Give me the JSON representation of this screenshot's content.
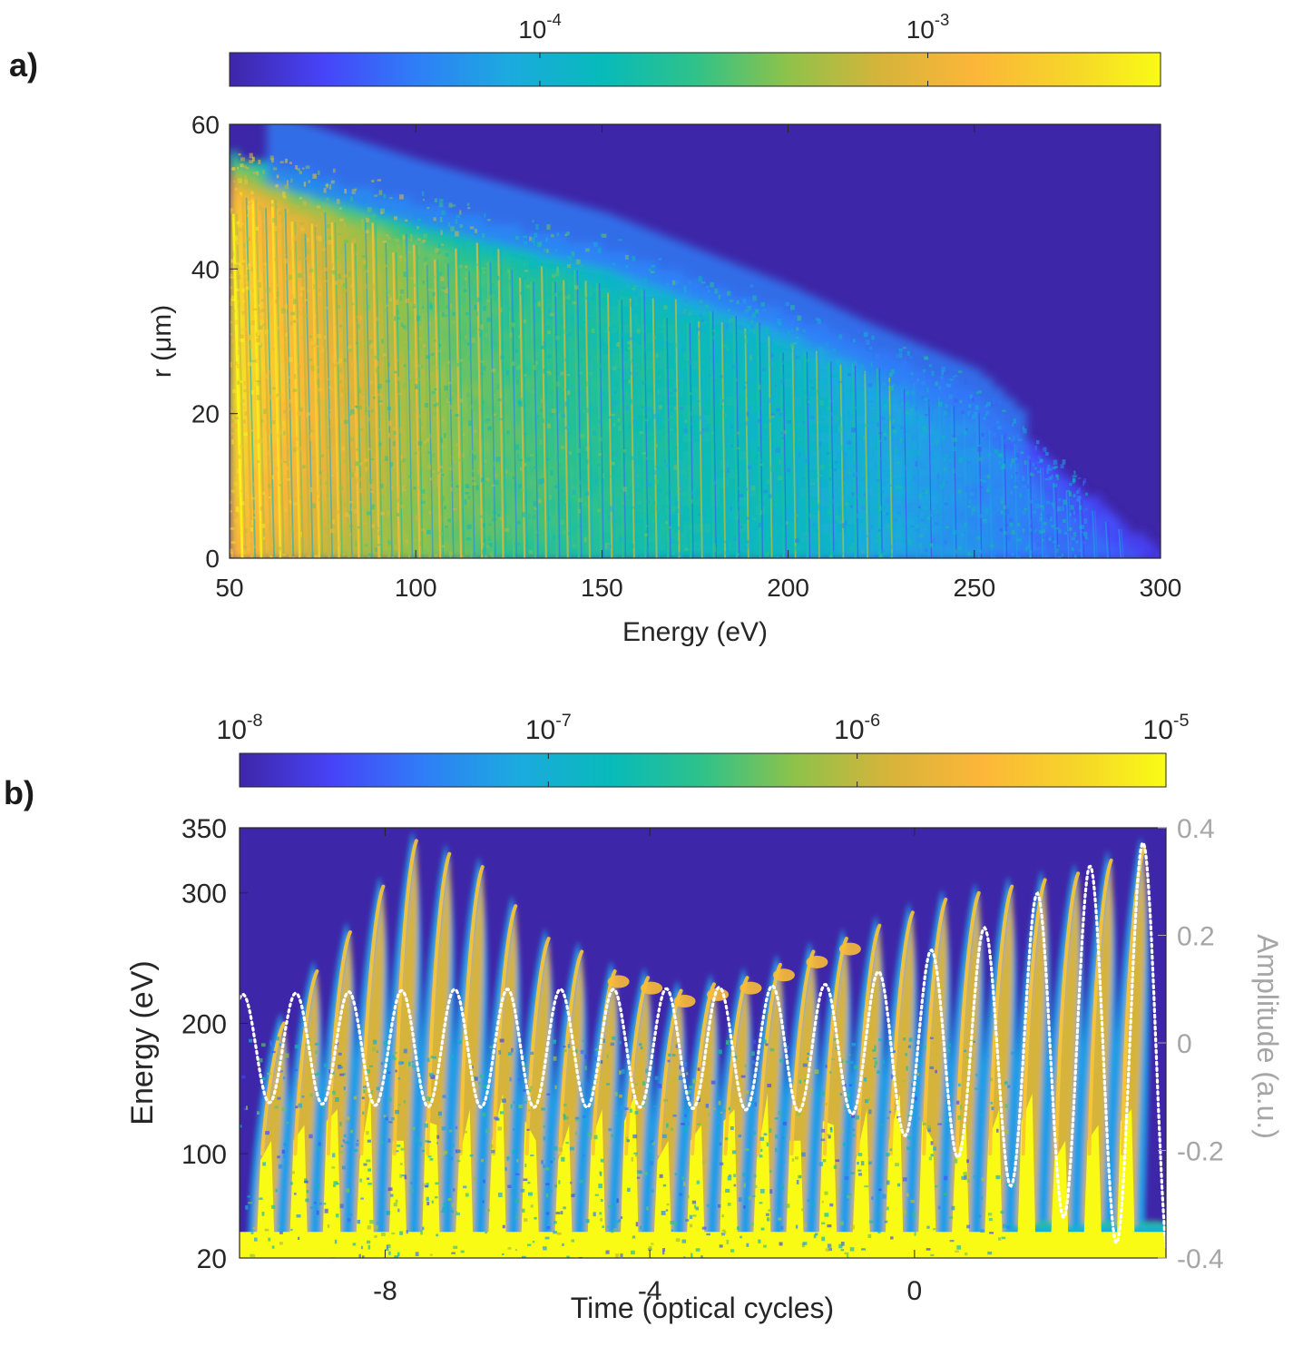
{
  "colors": {
    "parula": [
      "#3e26a8",
      "#4743f8",
      "#2f7ef7",
      "#1caadf",
      "#07baba",
      "#2fc28a",
      "#8fc24a",
      "#d6b43a",
      "#fcb639",
      "#f6d42a",
      "#f9fb15"
    ],
    "background": "#3e26a8",
    "amplitude_line": "#ffffff",
    "right_axis": "#a6a6a6"
  },
  "chart_data": [
    {
      "panel_label": "a)",
      "type": "heatmap",
      "xlabel": "Energy (eV)",
      "ylabel": "r (μm)",
      "xlim": [
        50,
        300
      ],
      "ylim": [
        0,
        60
      ],
      "xticks": [
        50,
        100,
        150,
        200,
        250,
        300
      ],
      "xtick_labels": [
        "50",
        "100",
        "150",
        "200",
        "250",
        "300"
      ],
      "yticks": [
        0,
        20,
        40,
        60
      ],
      "ytick_labels": [
        "0",
        "20",
        "40",
        "60"
      ],
      "colorbar": {
        "scale": "log",
        "range_log10": [
          -4.8,
          -2.4
        ],
        "ticks_log10": [
          -4,
          -3
        ],
        "tick_labels": [
          {
            "base": "10",
            "exp": "-4"
          },
          {
            "base": "10",
            "exp": "-3"
          }
        ]
      },
      "signal_edge_r_vs_energy": [
        [
          50,
          55
        ],
        [
          100,
          48
        ],
        [
          150,
          42
        ],
        [
          200,
          33
        ],
        [
          250,
          22
        ],
        [
          275,
          10
        ],
        [
          300,
          0
        ]
      ]
    },
    {
      "panel_label": "b)",
      "type": "heatmap",
      "xlabel": "Time (optical cycles)",
      "ylabel": "Energy (eV)",
      "y2label": "Amplitude (a.u.)",
      "xlim": [
        -10.2,
        3.8
      ],
      "ylim": [
        20,
        350
      ],
      "y2lim": [
        -0.4,
        0.4
      ],
      "xticks": [
        -8,
        -4,
        0
      ],
      "xtick_labels": [
        "-8",
        "-4",
        "0"
      ],
      "yticks": [
        20,
        100,
        200,
        300,
        350
      ],
      "ytick_labels": [
        "20",
        "100",
        "200",
        "300",
        "350"
      ],
      "y2ticks": [
        -0.4,
        -0.2,
        0,
        0.2,
        0.4
      ],
      "y2tick_labels": [
        "-0.4",
        "-0.2",
        "0",
        "0.2",
        "0.4"
      ],
      "colorbar": {
        "scale": "log",
        "range_log10": [
          -8,
          -5
        ],
        "ticks_log10": [
          -8,
          -7,
          -6,
          -5
        ],
        "tick_labels": [
          {
            "base": "10",
            "exp": "-8"
          },
          {
            "base": "10",
            "exp": "-7"
          },
          {
            "base": "10",
            "exp": "-6"
          },
          {
            "base": "10",
            "exp": "-5"
          }
        ]
      },
      "burst_peak_energy_eV": [
        200,
        240,
        270,
        305,
        340,
        330,
        320,
        290,
        265,
        255,
        240,
        235,
        225,
        230,
        235,
        245,
        255,
        265,
        275,
        285,
        295,
        300,
        305,
        310,
        315,
        325,
        335
      ],
      "amplitude_field": {
        "period_cycles": 0.8,
        "envelope_time": [
          -10.2,
          -7,
          -4,
          -1,
          1,
          2,
          3,
          3.8
        ],
        "envelope_amplitude": [
          0.1,
          0.11,
          0.11,
          0.12,
          0.22,
          0.3,
          0.36,
          0.4
        ]
      }
    }
  ]
}
